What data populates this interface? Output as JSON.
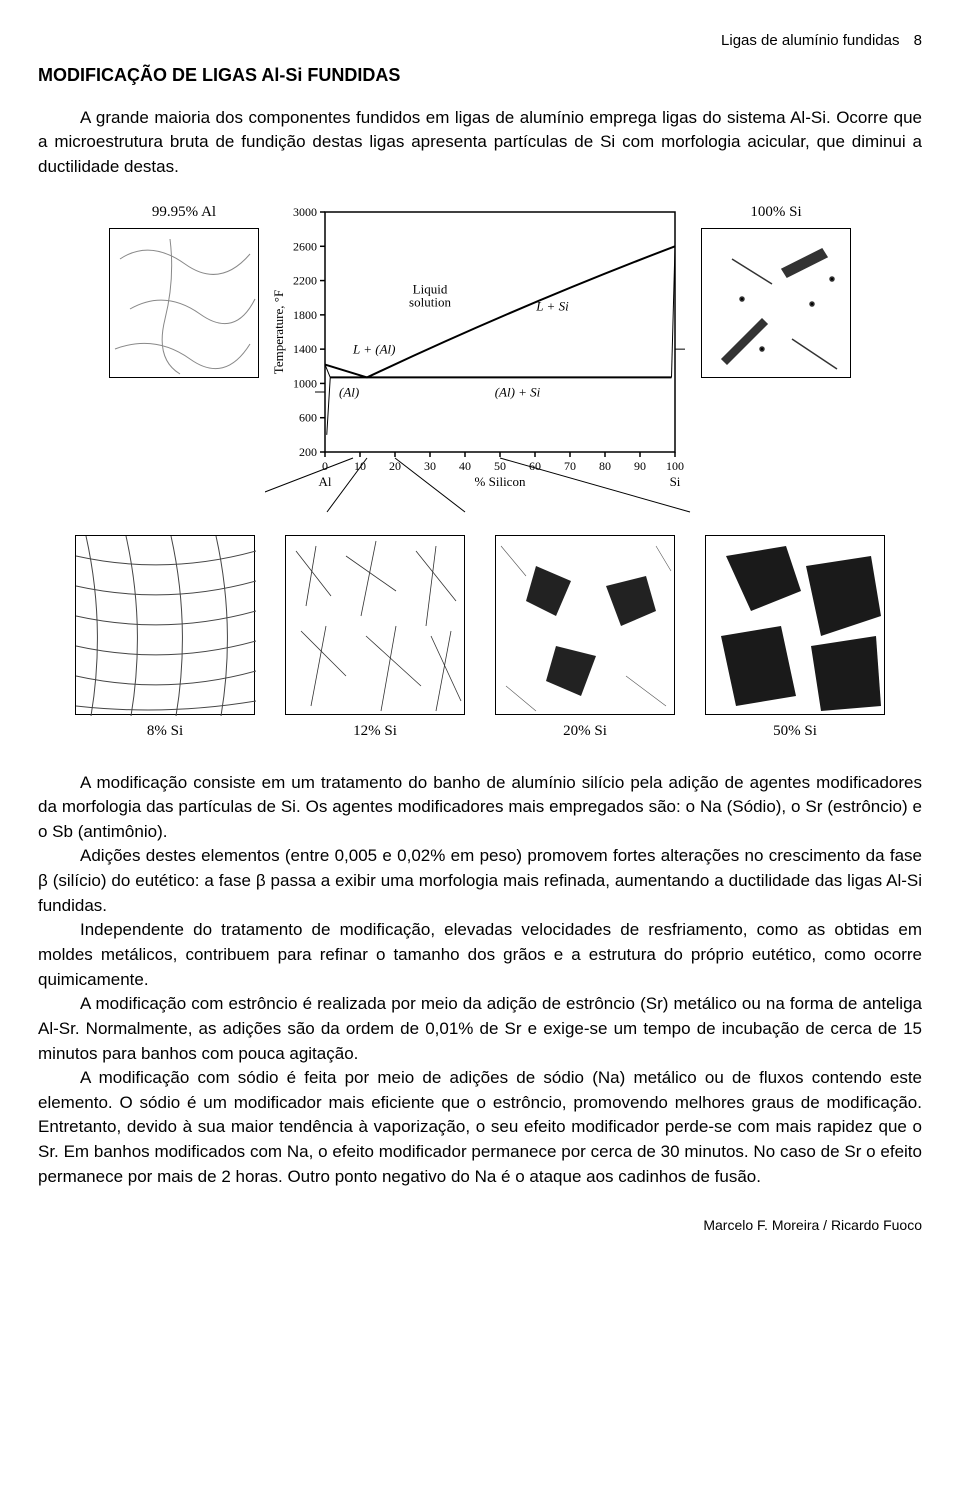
{
  "header": {
    "running": "Ligas de alumínio fundidas",
    "page": "8"
  },
  "section_title": "MODIFICAÇÃO DE LIGAS Al-Si FUNDIDAS",
  "intro": {
    "p1": "A grande maioria dos componentes fundidos em ligas de alumínio emprega ligas do sistema Al-Si. Ocorre que a microestrutura bruta de fundição destas ligas apresenta partículas de Si com morfologia acicular, que diminui a ductilidade destas."
  },
  "figure": {
    "top_left_label": "99.95% Al",
    "top_right_label": "100% Si",
    "phase_diagram": {
      "type": "line",
      "ylabel": "Temperature, °F",
      "xlabel": "% Silicon",
      "x_left": "Al",
      "x_right": "Si",
      "ylim": [
        200,
        3000
      ],
      "yticks": [
        200,
        600,
        1000,
        1400,
        1800,
        2200,
        2600,
        3000
      ],
      "xlim": [
        0,
        100
      ],
      "xticks": [
        0,
        10,
        20,
        30,
        40,
        50,
        60,
        70,
        80,
        90,
        100
      ],
      "regions": {
        "liquid": "Liquid solution",
        "l_si": "L + Si",
        "l_al": "L + (Al)",
        "al": "(Al)",
        "al_si": "(Al) + Si"
      },
      "colors": {
        "background": "#ffffff",
        "axis": "#000000",
        "curve": "#000000",
        "text": "#000000"
      },
      "eutectic_x": 12,
      "eutectic_temp_f": 1070,
      "liquidus_endpoints": {
        "al_melt_f": 1220,
        "si_melt_f": 2600
      }
    },
    "bottom_labels": [
      "8% Si",
      "12% Si",
      "20% Si",
      "50% Si"
    ]
  },
  "body": {
    "p2": "A modificação consiste em um tratamento do banho de alumínio silício pela adição de agentes modificadores da morfologia das partículas de Si. Os agentes modificadores mais empregados são: o Na (Sódio), o Sr (estrôncio) e o Sb (antimônio).",
    "p3": "Adições destes elementos (entre 0,005 e 0,02% em peso) promovem fortes alterações no crescimento da fase β (silício) do eutético: a fase β passa a exibir uma morfologia mais refinada, aumentando a ductilidade das ligas Al-Si fundidas.",
    "p4": "Independente do tratamento de modificação, elevadas velocidades de resfriamento, como as obtidas em moldes metálicos, contribuem para refinar o tamanho dos grãos e a estrutura do próprio eutético, como ocorre quimicamente.",
    "p5": "A modificação com estrôncio é realizada por meio da adição de estrôncio (Sr) metálico ou na forma de anteliga Al-Sr. Normalmente, as adições são da ordem de 0,01% de Sr e exige-se um tempo de incubação de cerca de 15 minutos para banhos com pouca agitação.",
    "p6": "A modificação com sódio é feita por meio de adições de sódio (Na) metálico ou de fluxos contendo este elemento. O sódio é um modificador mais eficiente que o estrôncio, promovendo melhores graus de modificação. Entretanto, devido à sua maior tendência à vaporização, o seu efeito modificador perde-se com mais rapidez que o Sr. Em banhos modificados com Na, o efeito modificador permanece por cerca de 30 minutos. No caso de Sr o efeito permanece por mais de 2 horas. Outro ponto negativo do Na é o ataque aos cadinhos de fusão."
  },
  "footer": "Marcelo F. Moreira / Ricardo Fuoco"
}
